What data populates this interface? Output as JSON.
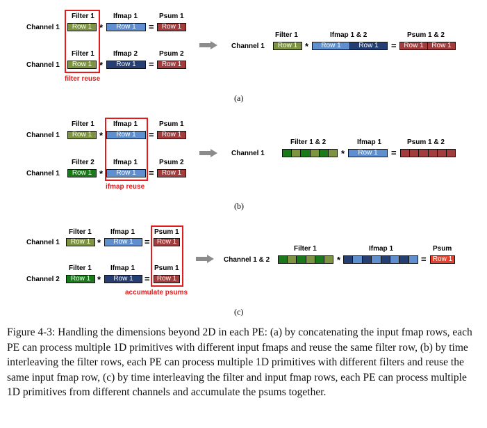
{
  "a": {
    "row1": {
      "channel": "Channel 1",
      "filter_hdr": "Filter 1",
      "ifmap_hdr": "Ifmap 1",
      "psum_hdr": "Psum 1",
      "cell": "Row 1"
    },
    "row2": {
      "channel": "Channel 1",
      "filter_hdr": "Filter 1",
      "ifmap_hdr": "Ifmap 2",
      "psum_hdr": "Psum 2",
      "cell": "Row 1"
    },
    "note": "filter reuse",
    "result": {
      "channel": "Channel 1",
      "filter_hdr": "Filter 1",
      "ifmap_hdr": "Ifmap 1 & 2",
      "psum_hdr": "Psum 1 & 2",
      "cell": "Row 1"
    },
    "sublabel": "(a)"
  },
  "b": {
    "row1": {
      "channel": "Channel 1",
      "filter_hdr": "Filter 1",
      "ifmap_hdr": "Ifmap 1",
      "psum_hdr": "Psum 1",
      "cell": "Row 1"
    },
    "row2": {
      "channel": "Channel 1",
      "filter_hdr": "Filter 2",
      "ifmap_hdr": "Ifmap 1",
      "psum_hdr": "Psum 2",
      "cell": "Row 1"
    },
    "note": "ifmap reuse",
    "result": {
      "channel": "Channel 1",
      "filter_hdr": "Filter 1 & 2",
      "ifmap_hdr": "Ifmap 1",
      "psum_hdr": "Psum 1 & 2",
      "cell": "Row 1"
    },
    "sublabel": "(b)"
  },
  "c": {
    "row1": {
      "channel": "Channel 1",
      "filter_hdr": "Filter 1",
      "ifmap_hdr": "Ifmap 1",
      "psum_hdr": "Psum 1",
      "cell": "Row 1"
    },
    "row2": {
      "channel": "Channel 2",
      "filter_hdr": "Filter 1",
      "ifmap_hdr": "Ifmap 1",
      "psum_hdr": "Psum 1",
      "cell": "Row 1"
    },
    "note": "accumulate psums",
    "result": {
      "channel": "Channel 1 & 2",
      "filter_hdr": "Filter 1",
      "ifmap_hdr": "Ifmap 1",
      "psum_hdr": "Psum",
      "cell": "Row 1"
    },
    "sublabel": "(c)"
  },
  "symbols": {
    "mul": "*",
    "eq": "="
  },
  "caption": "Figure 4-3:  Handling the dimensions beyond 2D in each PE: (a) by concatenating the input fmap rows, each PE can process multiple 1D primitives with different input fmaps and reuse the same filter row, (b) by time interleaving the filter rows, each PE can process multiple 1D primitives with different filters and reuse the same input fmap row, (c) by time interleaving the filter and input fmap rows, each PE can process multiple 1D primitives from different channels and accumulate the psums together."
}
